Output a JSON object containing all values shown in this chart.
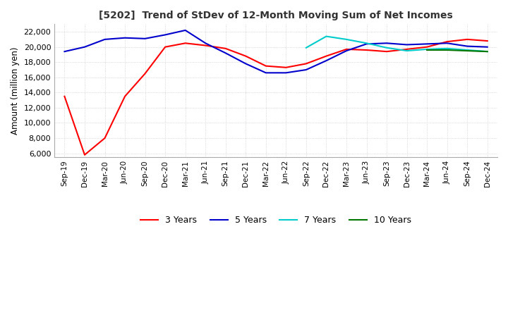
{
  "title": "[5202]  Trend of StDev of 12-Month Moving Sum of Net Incomes",
  "ylabel": "Amount (million yen)",
  "ylim": [
    5500,
    23000
  ],
  "yticks": [
    6000,
    8000,
    10000,
    12000,
    14000,
    16000,
    18000,
    20000,
    22000
  ],
  "line_colors": {
    "3y": "#ff0000",
    "5y": "#0000cc",
    "7y": "#00cccc",
    "10y": "#007700"
  },
  "legend_labels": [
    "3 Years",
    "5 Years",
    "7 Years",
    "10 Years"
  ],
  "x_labels": [
    "Sep-19",
    "Dec-19",
    "Mar-20",
    "Jun-20",
    "Sep-20",
    "Dec-20",
    "Mar-21",
    "Jun-21",
    "Sep-21",
    "Dec-21",
    "Mar-22",
    "Jun-22",
    "Sep-22",
    "Dec-22",
    "Mar-23",
    "Jun-23",
    "Sep-23",
    "Dec-23",
    "Mar-24",
    "Jun-24",
    "Sep-24",
    "Dec-24"
  ],
  "data_3y": [
    13500,
    5800,
    8000,
    13500,
    16500,
    20000,
    20500,
    20200,
    19800,
    18800,
    17500,
    17300,
    17800,
    18800,
    19700,
    19600,
    19400,
    19700,
    20000,
    20700,
    21000,
    20800
  ],
  "data_5y": [
    19400,
    20000,
    21000,
    21200,
    21100,
    21600,
    22200,
    20500,
    19200,
    17800,
    16600,
    16600,
    17000,
    18200,
    19500,
    20400,
    20500,
    20300,
    20400,
    20500,
    20100,
    20000
  ],
  "data_7y": [
    null,
    null,
    null,
    null,
    null,
    null,
    null,
    null,
    null,
    null,
    null,
    null,
    19900,
    21400,
    21000,
    20500,
    19900,
    19500,
    19700,
    19800,
    19600,
    19400
  ],
  "data_10y": [
    null,
    null,
    null,
    null,
    null,
    null,
    null,
    null,
    null,
    null,
    null,
    null,
    null,
    null,
    null,
    null,
    null,
    null,
    19600,
    19600,
    19500,
    19400
  ],
  "grid_color": "#cccccc",
  "background_color": "#ffffff"
}
